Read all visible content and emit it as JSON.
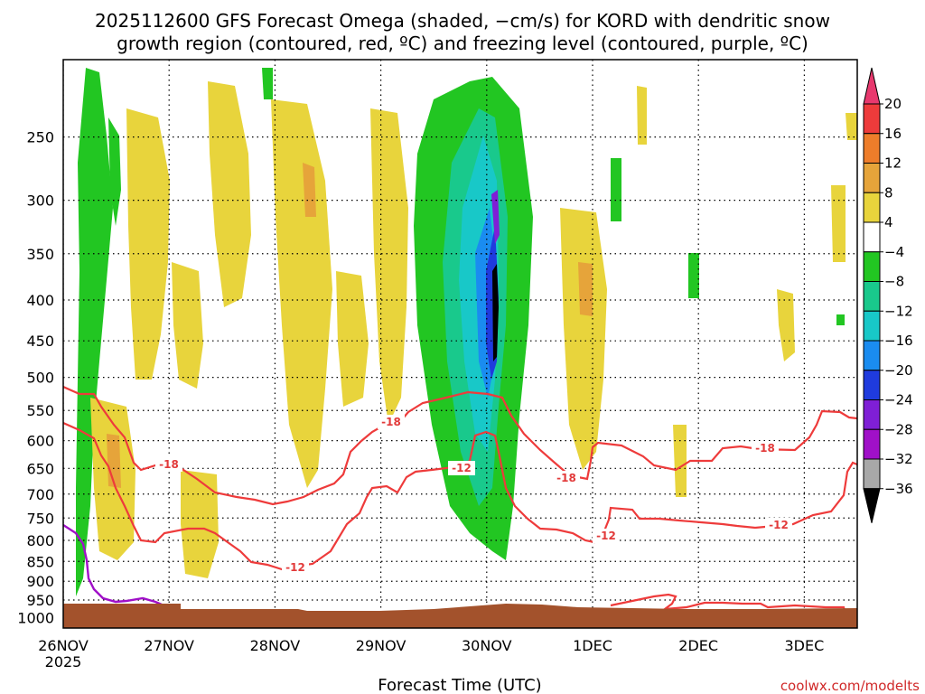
{
  "chart_data": {
    "type": "heatmap",
    "title_lines": [
      "2025112600 GFS Forecast Omega (shaded, −cm/s) for KORD with dendritic snow",
      "growth region (contoured, red, ºC) and freezing level (contoured, purple, ºC)"
    ],
    "xlabel": "Forecast Time (UTC)",
    "ylabel": "",
    "x_ticks": [
      "26NOV",
      "27NOV",
      "28NOV",
      "29NOV",
      "30NOV",
      "1DEC",
      "2DEC",
      "3DEC"
    ],
    "x_tick_year": "2025",
    "x_range_days": [
      0,
      7.5
    ],
    "y_ticks": [
      250,
      300,
      350,
      400,
      450,
      500,
      550,
      600,
      650,
      700,
      750,
      800,
      850,
      900,
      950,
      1000
    ],
    "y_range_hpa": [
      200,
      1030
    ],
    "colorbar": {
      "labels": [
        "20",
        "16",
        "12",
        "8",
        "4",
        "−4",
        "−8",
        "−12",
        "−16",
        "−20",
        "−24",
        "−28",
        "−32",
        "−36"
      ],
      "colors": [
        "#e8396e",
        "#ee3b3b",
        "#ee7d2a",
        "#e6a43a",
        "#e8d43c",
        "#ffffff",
        "#22c622",
        "#19c98c",
        "#18c8c8",
        "#1a8cf0",
        "#1f3bde",
        "#7f1fd6",
        "#a010c8",
        "#a8a8a8",
        "#000000"
      ]
    },
    "omega_regions": [
      {
        "name": "ascent-core",
        "time_days": [
          3.75,
          4.2
        ],
        "p_hpa": [
          220,
          850
        ],
        "max_minus_cm_s": -24
      },
      {
        "name": "early-ascent",
        "time_days": [
          0.1,
          0.6
        ],
        "p_hpa": [
          210,
          830
        ],
        "max_minus_cm_s": -8
      },
      {
        "name": "subsidence-band",
        "time_days": [
          0.6,
          2.6
        ],
        "p_hpa": [
          250,
          700
        ],
        "max_plus_cm_s": 8
      },
      {
        "name": "post-frontal-subsidence",
        "time_days": [
          4.6,
          5.1
        ],
        "p_hpa": [
          280,
          640
        ],
        "max_plus_cm_s": 8
      }
    ],
    "contours": [
      {
        "label": "-18",
        "color": "#ee3b3b",
        "label_positions_day_hpa": [
          [
            0.95,
            665
          ],
          [
            3.2,
            600
          ],
          [
            4.75,
            690
          ],
          [
            6.8,
            630
          ]
        ]
      },
      {
        "label": "-12",
        "color": "#ee3b3b",
        "label_positions_day_hpa": [
          [
            2.4,
            875
          ],
          [
            3.85,
            680
          ],
          [
            5.1,
            825
          ],
          [
            6.75,
            790
          ]
        ]
      },
      {
        "label": "0",
        "color": "#a010c8",
        "label_positions_day_hpa": []
      }
    ],
    "terrain_color": "#a3522c",
    "credit": "coolwx.com/modelts"
  }
}
